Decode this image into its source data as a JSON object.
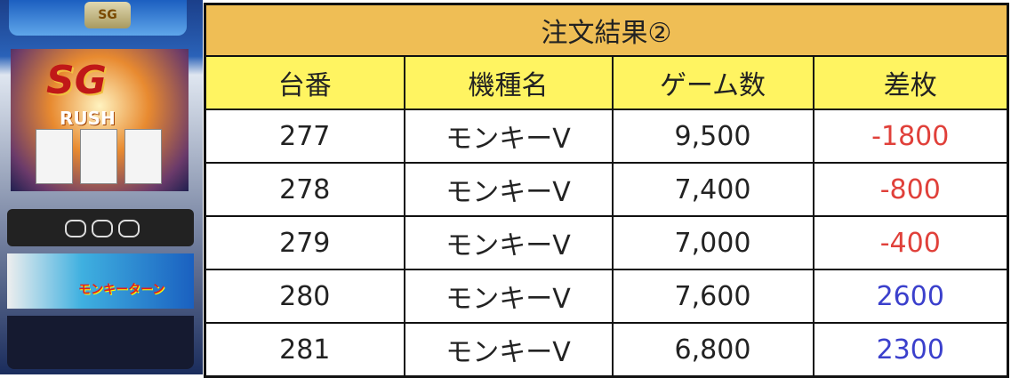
{
  "machine_image": {
    "badge": "SG",
    "logo": "SG",
    "rush": "RUSH",
    "art_title": "モンキーターン"
  },
  "table": {
    "title": "注文結果②",
    "headers": [
      "台番",
      "機種名",
      "ゲーム数",
      "差枚"
    ],
    "rows": [
      {
        "number": "277",
        "model": "モンキーV",
        "games": "9,500",
        "diff": "-1800",
        "sign": "neg"
      },
      {
        "number": "278",
        "model": "モンキーV",
        "games": "7,400",
        "diff": "-800",
        "sign": "neg"
      },
      {
        "number": "279",
        "model": "モンキーV",
        "games": "7,000",
        "diff": "-400",
        "sign": "neg"
      },
      {
        "number": "280",
        "model": "モンキーV",
        "games": "7,600",
        "diff": "2600",
        "sign": "pos"
      },
      {
        "number": "281",
        "model": "モンキーV",
        "games": "6,800",
        "diff": "2300",
        "sign": "pos"
      }
    ]
  },
  "colors": {
    "title_bg": "#EFBE55",
    "header_bg": "#FFF461",
    "negative": "#e0403a",
    "positive": "#3b40cc"
  }
}
